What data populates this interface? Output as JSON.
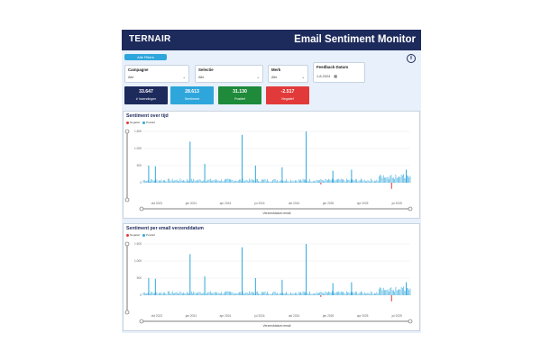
{
  "header": {
    "logo": "TERNAIR",
    "title": "Email Sentiment Monitor"
  },
  "filters_button": "Alle Filters",
  "slicers": [
    {
      "label": "Campagne",
      "value": "Alle"
    },
    {
      "label": "Selectie",
      "value": "Alle"
    },
    {
      "label": "Merk",
      "value": "Alle"
    },
    {
      "label": "Feedback Datum",
      "value": "1-8-2024"
    }
  ],
  "kpis": [
    {
      "value": "33.647",
      "label": "# Inzendingen",
      "color": "#1d2a5c"
    },
    {
      "value": "28.613",
      "label": "Sentiment",
      "color": "#2ea6dc"
    },
    {
      "value": "31.130",
      "label": "Positief",
      "color": "#1e8a3a"
    },
    {
      "value": "-2.517",
      "label": "Negatief",
      "color": "#e23a3a"
    }
  ],
  "panels": [
    {
      "title": "Sentiment over tijd",
      "axis_title": "Verzenddatum email"
    },
    {
      "title": "Sentiment per email verzenddatum",
      "axis_title": "Verzenddatum email"
    }
  ],
  "legend": [
    {
      "label": "Negatief",
      "color": "#e23a3a"
    },
    {
      "label": "Positief",
      "color": "#2ea6dc"
    }
  ],
  "chart_data": [
    {
      "type": "bar",
      "title": "Sentiment over tijd",
      "xlabel": "Verzenddatum email",
      "ylabel": "",
      "ylim": [
        -500,
        1500
      ],
      "yticks": [
        0,
        500,
        1000,
        1500
      ],
      "xticks": [
        "okt 2023",
        "jan 2024",
        "apr 2024",
        "jul 2024",
        "okt 2024",
        "jan 2025",
        "apr 2025",
        "jul 2025"
      ],
      "series": [
        {
          "name": "Negatief",
          "color": "#e23a3a",
          "spikes": [
            {
              "pos": 0.665,
              "value": -50
            },
            {
              "pos": 0.93,
              "value": -180
            }
          ]
        },
        {
          "name": "Positief",
          "color": "#2ea6dc",
          "spikes": [
            {
              "pos": 0.02,
              "value": 500
            },
            {
              "pos": 0.045,
              "value": 480
            },
            {
              "pos": 0.175,
              "value": 1200
            },
            {
              "pos": 0.23,
              "value": 550
            },
            {
              "pos": 0.37,
              "value": 1400
            },
            {
              "pos": 0.42,
              "value": 500
            },
            {
              "pos": 0.52,
              "value": 450
            },
            {
              "pos": 0.61,
              "value": 1500
            },
            {
              "pos": 0.71,
              "value": 350
            },
            {
              "pos": 0.78,
              "value": 380
            },
            {
              "pos": 0.985,
              "value": 380
            }
          ]
        }
      ]
    },
    {
      "type": "bar",
      "title": "Sentiment per email verzenddatum",
      "xlabel": "Verzenddatum email",
      "ylabel": "",
      "ylim": [
        -500,
        1500
      ],
      "yticks": [
        0,
        500,
        1000,
        1500
      ],
      "xticks": [
        "okt 2023",
        "jan 2024",
        "apr 2024",
        "jul 2024",
        "okt 2024",
        "jan 2025",
        "apr 2025",
        "jul 2025"
      ],
      "series": [
        {
          "name": "Negatief",
          "color": "#e23a3a",
          "spikes": [
            {
              "pos": 0.665,
              "value": -50
            },
            {
              "pos": 0.93,
              "value": -180
            }
          ]
        },
        {
          "name": "Positief",
          "color": "#2ea6dc",
          "spikes": [
            {
              "pos": 0.02,
              "value": 500
            },
            {
              "pos": 0.045,
              "value": 480
            },
            {
              "pos": 0.175,
              "value": 1200
            },
            {
              "pos": 0.23,
              "value": 550
            },
            {
              "pos": 0.37,
              "value": 1400
            },
            {
              "pos": 0.42,
              "value": 500
            },
            {
              "pos": 0.52,
              "value": 450
            },
            {
              "pos": 0.61,
              "value": 1500
            },
            {
              "pos": 0.71,
              "value": 350
            },
            {
              "pos": 0.78,
              "value": 380
            },
            {
              "pos": 0.985,
              "value": 380
            }
          ]
        }
      ]
    }
  ]
}
